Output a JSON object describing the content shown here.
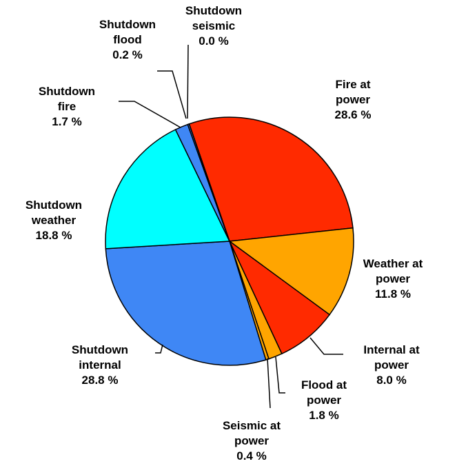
{
  "chart_data": {
    "type": "pie",
    "categories": [
      "Fire at power",
      "Weather at power",
      "Internal at power",
      "Flood at power",
      "Seismic at power",
      "Shutdown internal",
      "Shutdown weather",
      "Shutdown fire",
      "Shutdown flood",
      "Shutdown seismic"
    ],
    "values": [
      28.6,
      11.8,
      8.0,
      1.8,
      0.4,
      28.8,
      18.8,
      1.7,
      0.2,
      0.0
    ],
    "value_labels": [
      "28.6 %",
      "11.8 %",
      "8.0 %",
      "1.8 %",
      "0.4 %",
      "28.8 %",
      "18.8 %",
      "1.7 %",
      "0.2 %",
      "0.0 %"
    ],
    "colors": [
      "#ff2a00",
      "#ffa500",
      "#ff2a00",
      "#ffa500",
      "#ffa500",
      "#3f87f5",
      "#00ffff",
      "#3f87f5",
      "#3f87f5",
      "#3f87f5"
    ]
  }
}
